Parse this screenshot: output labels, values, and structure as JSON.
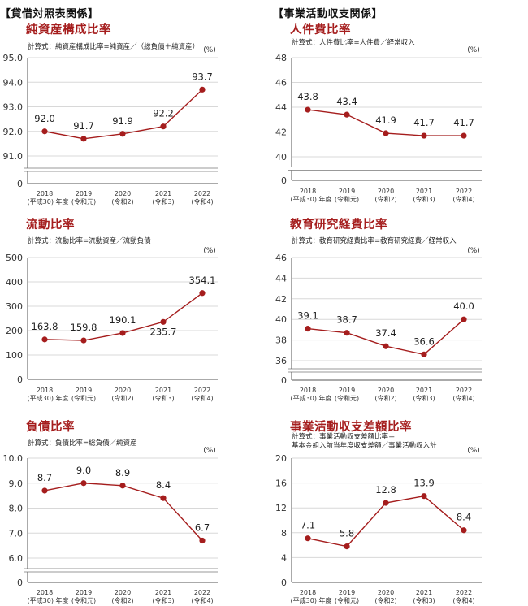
{
  "sections": {
    "left": "【貸借対照表関係】",
    "right": "【事業活動収支関係】"
  },
  "charts": {
    "net_assets": {
      "title": "純資産構成比率",
      "formula": [
        "計算式：純資産構成比率=純資産／（総負債＋純資産）"
      ],
      "unit": "(%)",
      "chart_data": {
        "type": "line",
        "title": "純資産構成比率",
        "categories": [
          "2018",
          "2019",
          "2020",
          "2021",
          "2022"
        ],
        "category_sub": [
          "(平成30) 年度",
          "(令和元)",
          "(令和2)",
          "(令和3)",
          "(令和4)"
        ],
        "values": [
          92.0,
          91.7,
          91.9,
          92.2,
          93.7
        ],
        "labels": [
          "92.0",
          "91.7",
          "91.9",
          "92.2",
          "93.7"
        ],
        "ylim": [
          91.0,
          95.0
        ],
        "yticks": [
          "91.0",
          "92.0",
          "93.0",
          "94.0",
          "95.0"
        ],
        "axis_break": true,
        "line_color": "#a51d1d"
      }
    },
    "personnel": {
      "title": "人件費比率",
      "formula": [
        "計算式：人件費比率=人件費／経常収入"
      ],
      "unit": "(%)",
      "chart_data": {
        "type": "line",
        "title": "人件費比率",
        "categories": [
          "2018",
          "2019",
          "2020",
          "2021",
          "2022"
        ],
        "category_sub": [
          "(平成30) 年度",
          "(令和元)",
          "(令和2)",
          "(令和3)",
          "(令和4)"
        ],
        "values": [
          43.8,
          43.4,
          41.9,
          41.7,
          41.7
        ],
        "labels": [
          "43.8",
          "43.4",
          "41.9",
          "41.7",
          "41.7"
        ],
        "ylim": [
          40,
          48
        ],
        "yticks": [
          "40",
          "42",
          "44",
          "46",
          "48"
        ],
        "axis_break": true,
        "line_color": "#a51d1d"
      }
    },
    "current": {
      "title": "流動比率",
      "formula": [
        "計算式：流動比率=流動資産／流動負債"
      ],
      "unit": "(%)",
      "chart_data": {
        "type": "line",
        "title": "流動比率",
        "categories": [
          "2018",
          "2019",
          "2020",
          "2021",
          "2022"
        ],
        "category_sub": [
          "(平成30) 年度",
          "(令和元)",
          "(令和2)",
          "(令和3)",
          "(令和4)"
        ],
        "values": [
          163.8,
          159.8,
          190.1,
          235.7,
          354.1
        ],
        "labels": [
          "163.8",
          "159.8",
          "190.1",
          "235.7",
          "354.1"
        ],
        "ylim": [
          0,
          500
        ],
        "yticks": [
          "0",
          "100",
          "200",
          "300",
          "400",
          "500"
        ],
        "axis_break": false,
        "line_color": "#a51d1d"
      }
    },
    "education": {
      "title": "教育研究経費比率",
      "formula": [
        "計算式：教育研究経費比率=教育研究経費／経常収入"
      ],
      "unit": "(%)",
      "chart_data": {
        "type": "line",
        "title": "教育研究経費比率",
        "categories": [
          "2018",
          "2019",
          "2020",
          "2021",
          "2022"
        ],
        "category_sub": [
          "(平成30) 年度",
          "(令和元)",
          "(令和2)",
          "(令和3)",
          "(令和4)"
        ],
        "values": [
          39.1,
          38.7,
          37.4,
          36.6,
          40.0
        ],
        "labels": [
          "39.1",
          "38.7",
          "37.4",
          "36.6",
          "40.0"
        ],
        "ylim": [
          36,
          46
        ],
        "yticks": [
          "36",
          "38",
          "40",
          "42",
          "44",
          "46"
        ],
        "axis_break": true,
        "line_color": "#a51d1d"
      }
    },
    "debt": {
      "title": "負債比率",
      "formula": [
        "計算式：負債比率=総負債／純資産"
      ],
      "unit": "(%)",
      "chart_data": {
        "type": "line",
        "title": "負債比率",
        "categories": [
          "2018",
          "2019",
          "2020",
          "2021",
          "2022"
        ],
        "category_sub": [
          "(平成30) 年度",
          "(令和元)",
          "(令和2)",
          "(令和3)",
          "(令和4)"
        ],
        "values": [
          8.7,
          9.0,
          8.9,
          8.4,
          6.7
        ],
        "labels": [
          "8.7",
          "9.0",
          "8.9",
          "8.4",
          "6.7"
        ],
        "ylim": [
          6.0,
          10.0
        ],
        "yticks": [
          "6.0",
          "7.0",
          "8.0",
          "9.0",
          "10.0"
        ],
        "axis_break": true,
        "line_color": "#a51d1d"
      }
    },
    "balance": {
      "title": "事業活動収支差額比率",
      "formula": [
        "計算式：事業活動収支差額比率＝",
        "基本金組入前当年度収支差額／事業活動収入計"
      ],
      "unit": "(%)",
      "chart_data": {
        "type": "line",
        "title": "事業活動収支差額比率",
        "categories": [
          "2018",
          "2019",
          "2020",
          "2021",
          "2022"
        ],
        "category_sub": [
          "(平成30) 年度",
          "(令和元)",
          "(令和2)",
          "(令和3)",
          "(令和4)"
        ],
        "values": [
          7.1,
          5.8,
          12.8,
          13.9,
          8.4
        ],
        "labels": [
          "7.1",
          "5.8",
          "12.8",
          "13.9",
          "8.4"
        ],
        "ylim": [
          0,
          20
        ],
        "yticks": [
          "0",
          "4",
          "8",
          "12",
          "16",
          "20"
        ],
        "axis_break": false,
        "line_color": "#a51d1d"
      }
    }
  }
}
